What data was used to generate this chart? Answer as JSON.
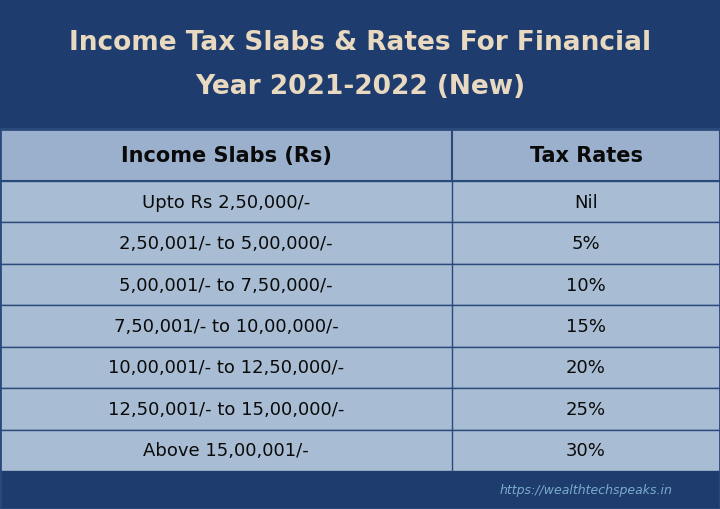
{
  "title_line1": "Income Tax Slabs & Rates For Financial",
  "title_line2": "Year 2021-2022 (New)",
  "title_bg": "#1e3d6e",
  "title_text_color": "#e8d9c0",
  "header_bg": "#9ab0cc",
  "header_text_color": "#0a0a0a",
  "row_bg": "#a8bdd4",
  "cell_text_color": "#0a0a0a",
  "border_color": "#2a4a7c",
  "footer_bg": "#1e3d6e",
  "footer_text": "https://wealthtechspeaks.in",
  "footer_text_color": "#7aabcc",
  "col1_header": "Income Slabs (Rs)",
  "col2_header": "Tax Rates",
  "rows": [
    [
      "Upto Rs 2,50,000/-",
      "Nil"
    ],
    [
      "2,50,001/- to 5,00,000/-",
      "5%"
    ],
    [
      "5,00,001/- to 7,50,000/-",
      "10%"
    ],
    [
      "7,50,001/- to 10,00,000/-",
      "15%"
    ],
    [
      "10,00,001/- to 12,50,000/-",
      "20%"
    ],
    [
      "12,50,001/- to 15,00,000/-",
      "25%"
    ],
    [
      "Above 15,00,001/-",
      "30%"
    ]
  ],
  "fig_width": 7.2,
  "fig_height": 5.1,
  "dpi": 100
}
